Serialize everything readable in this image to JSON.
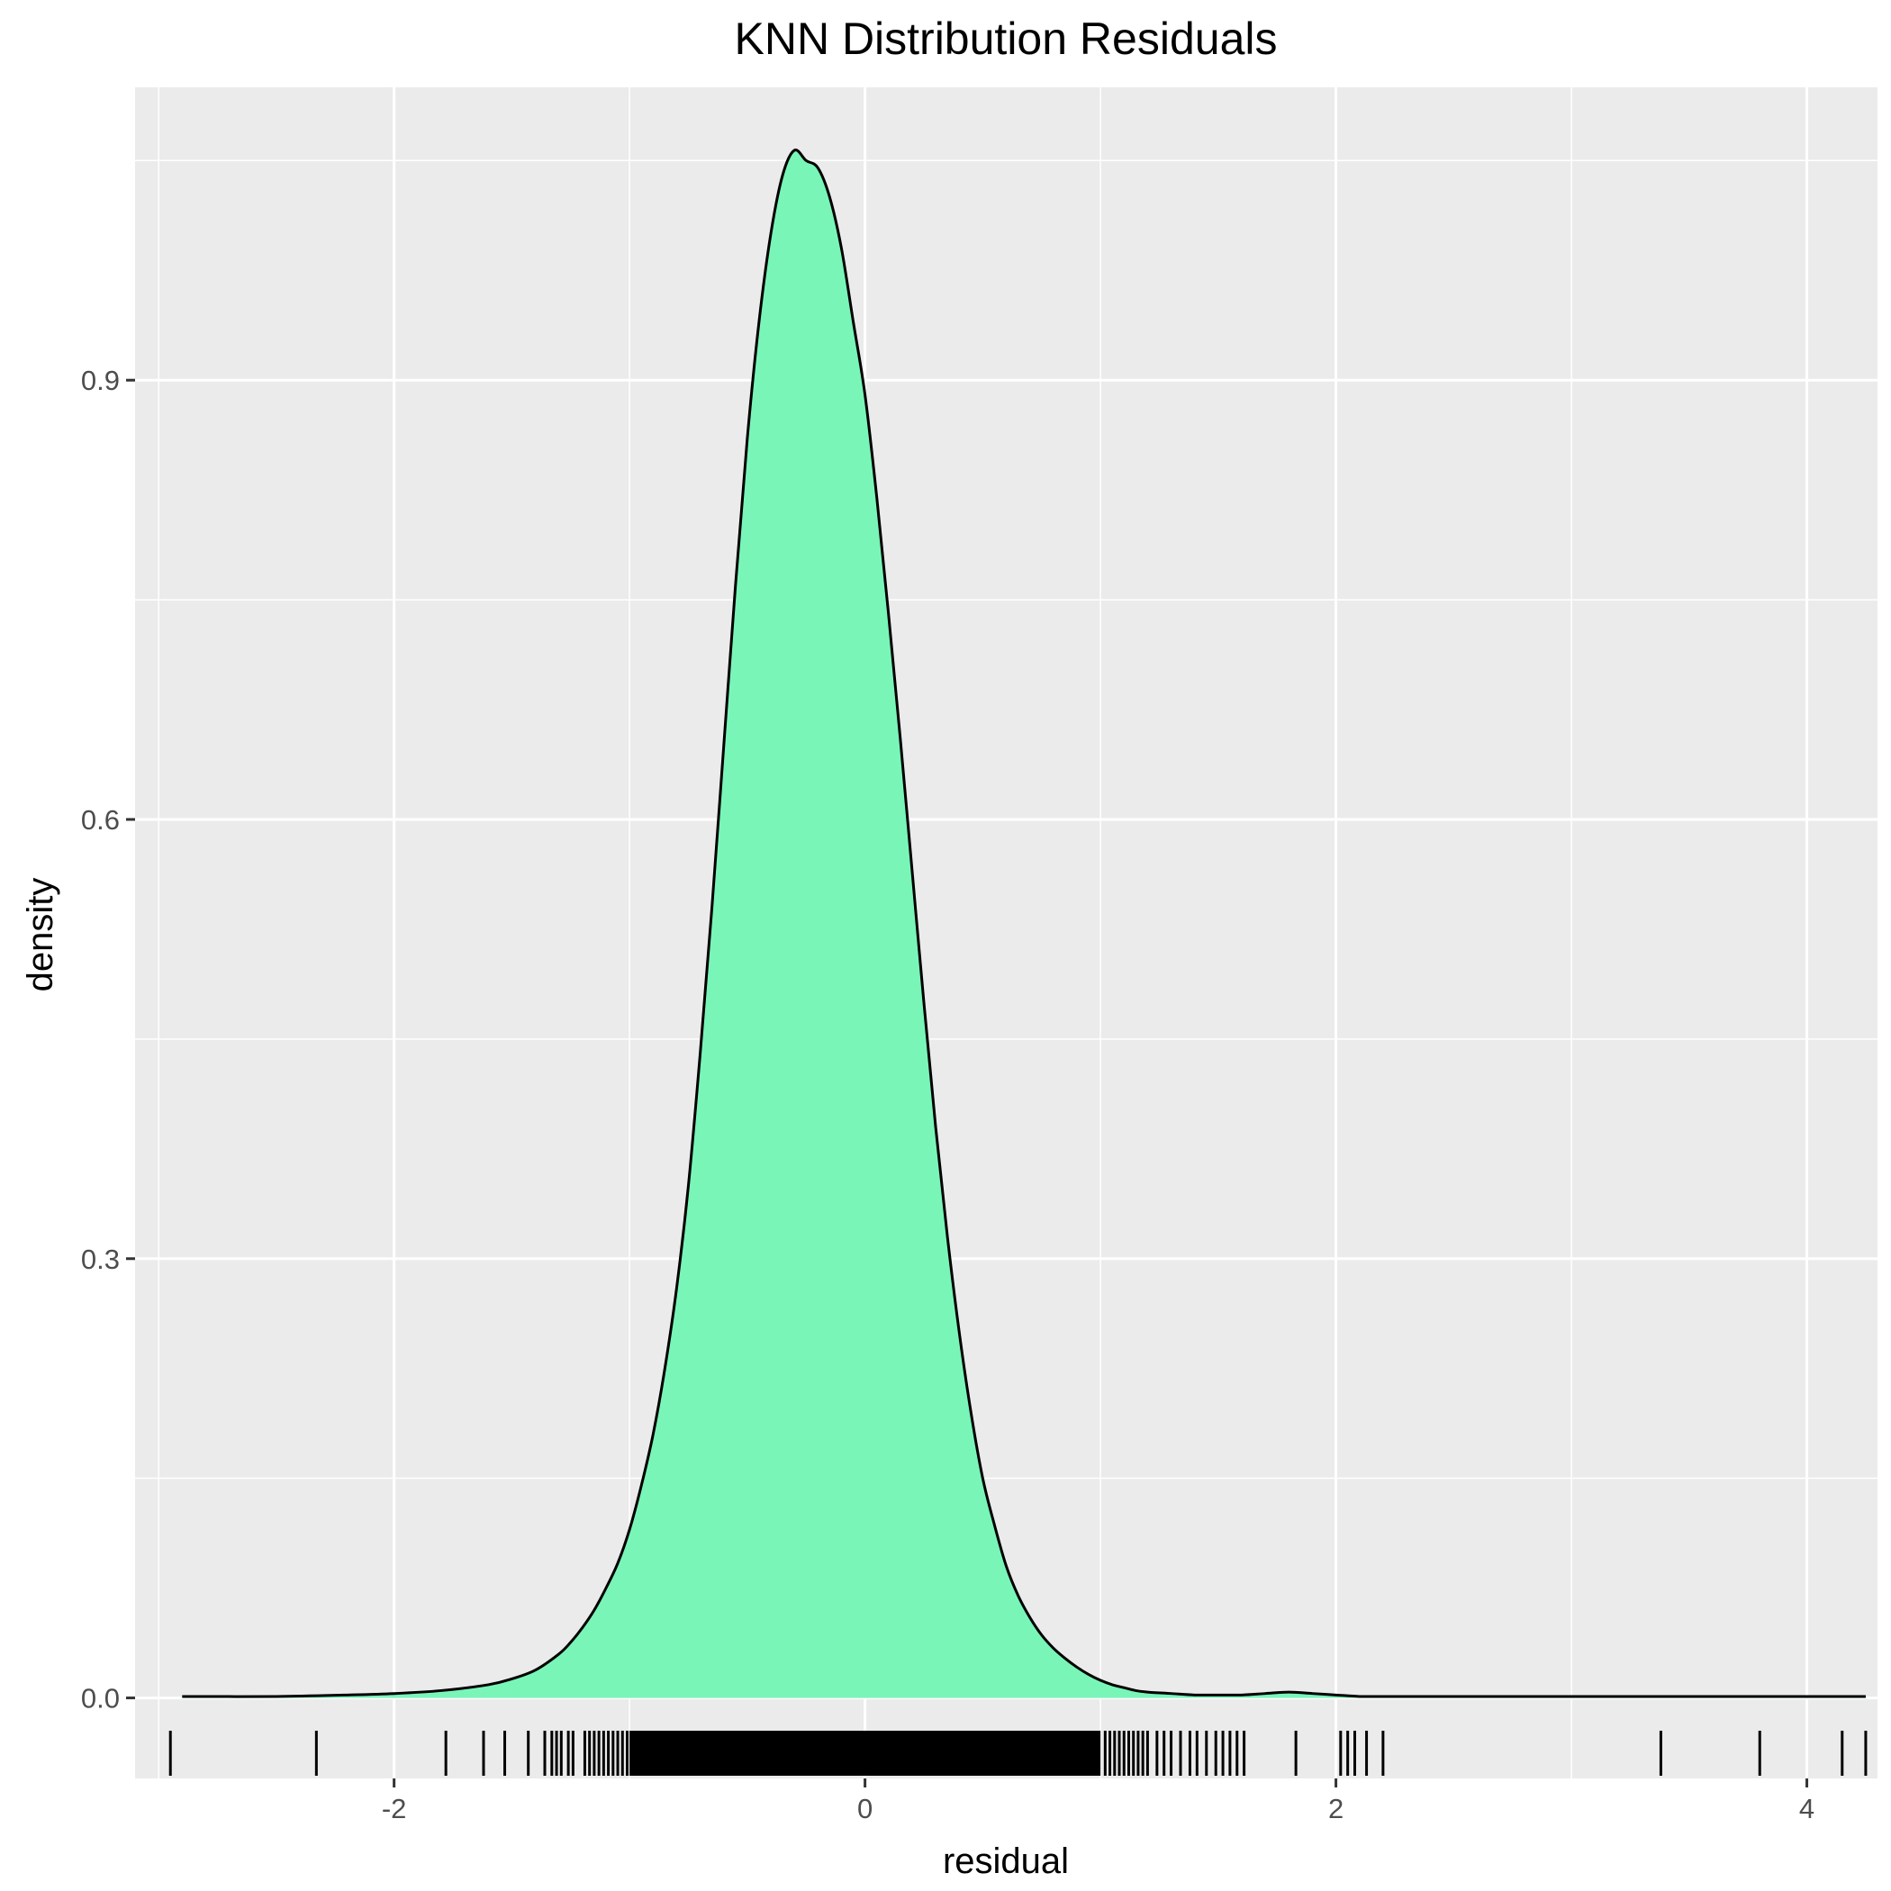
{
  "chart_data": {
    "type": "area",
    "title": "KNN Distribution Residuals",
    "xlabel": "residual",
    "ylabel": "density",
    "xlim": [
      -3.1,
      4.3
    ],
    "ylim": [
      -0.055,
      1.1
    ],
    "x_ticks": [
      -2,
      0,
      2,
      4
    ],
    "x_tick_labels": [
      "-2",
      "0",
      "2",
      "4"
    ],
    "y_ticks": [
      0.0,
      0.3,
      0.6,
      0.9
    ],
    "y_tick_labels": [
      "0.0",
      "0.3",
      "0.6",
      "0.9"
    ],
    "grid": true,
    "legend": "none",
    "colors": {
      "panel": "#ebebeb",
      "grid": "#ffffff",
      "fill": "#79f5b8",
      "line": "#000000",
      "tick": "#333333"
    },
    "series": [
      {
        "x": [
          -2.9,
          -2.5,
          -2.2,
          -2.0,
          -1.8,
          -1.6,
          -1.5,
          -1.4,
          -1.3,
          -1.25,
          -1.2,
          -1.15,
          -1.1,
          -1.05,
          -1.0,
          -0.95,
          -0.9,
          -0.85,
          -0.8,
          -0.75,
          -0.7,
          -0.65,
          -0.6,
          -0.55,
          -0.5,
          -0.45,
          -0.4,
          -0.35,
          -0.3,
          -0.25,
          -0.2,
          -0.15,
          -0.1,
          -0.05,
          0.0,
          0.05,
          0.1,
          0.15,
          0.2,
          0.25,
          0.3,
          0.35,
          0.4,
          0.45,
          0.5,
          0.55,
          0.6,
          0.65,
          0.7,
          0.75,
          0.8,
          0.85,
          0.9,
          0.95,
          1.0,
          1.05,
          1.1,
          1.15,
          1.2,
          1.3,
          1.4,
          1.5,
          1.6,
          1.7,
          1.8,
          1.9,
          2.0,
          2.1,
          2.2,
          2.4,
          2.7,
          3.0,
          3.3,
          3.6,
          3.9,
          4.2,
          4.25
        ],
        "y": [
          0.001,
          0.001,
          0.002,
          0.003,
          0.005,
          0.009,
          0.013,
          0.019,
          0.03,
          0.038,
          0.048,
          0.06,
          0.075,
          0.092,
          0.115,
          0.145,
          0.18,
          0.225,
          0.28,
          0.35,
          0.44,
          0.54,
          0.65,
          0.76,
          0.86,
          0.94,
          1.0,
          1.04,
          1.057,
          1.05,
          1.045,
          1.025,
          0.99,
          0.94,
          0.89,
          0.82,
          0.74,
          0.655,
          0.565,
          0.475,
          0.39,
          0.315,
          0.25,
          0.195,
          0.15,
          0.118,
          0.09,
          0.07,
          0.055,
          0.043,
          0.034,
          0.027,
          0.021,
          0.016,
          0.012,
          0.009,
          0.007,
          0.005,
          0.004,
          0.003,
          0.002,
          0.002,
          0.002,
          0.003,
          0.004,
          0.003,
          0.002,
          0.001,
          0.001,
          0.001,
          0.001,
          0.001,
          0.001,
          0.001,
          0.001,
          0.001,
          0.001
        ]
      }
    ],
    "rug": [
      -2.95,
      -2.33,
      -1.78,
      -1.62,
      -1.53,
      -1.43,
      -1.36,
      -1.33,
      -1.31,
      -1.29,
      -1.26,
      -1.24,
      -1.19,
      -1.17,
      -1.15,
      -1.13,
      -1.11,
      -1.09,
      -1.07,
      -1.05,
      -1.03,
      -1.01,
      1.02,
      1.04,
      1.06,
      1.08,
      1.1,
      1.12,
      1.14,
      1.16,
      1.18,
      1.2,
      1.24,
      1.27,
      1.3,
      1.34,
      1.38,
      1.41,
      1.45,
      1.49,
      1.52,
      1.55,
      1.58,
      1.61,
      1.83,
      2.02,
      2.05,
      2.08,
      2.13,
      2.2,
      3.38,
      3.8,
      4.15,
      4.25
    ],
    "rug_dense_range": [
      -1.0,
      1.0
    ]
  }
}
